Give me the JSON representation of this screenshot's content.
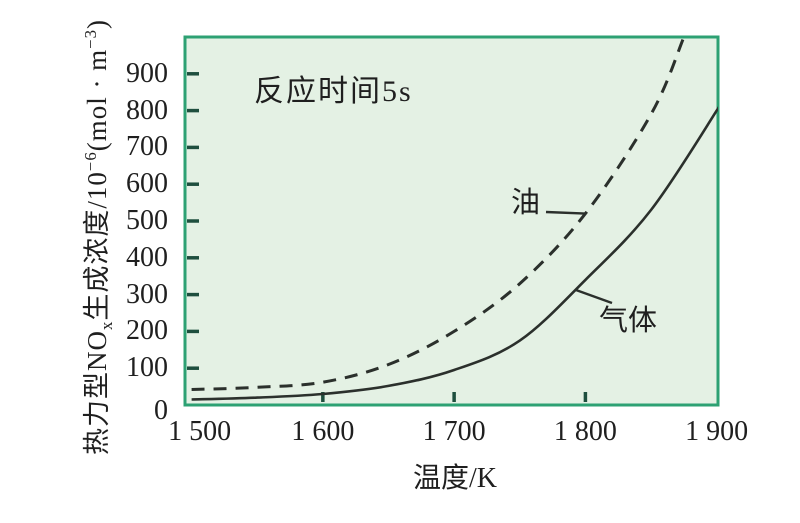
{
  "figure": {
    "annotation": "反应时间5s",
    "x_title": "温度/K",
    "y_title": {
      "p1": "热力型NO",
      "sub1": "x",
      "p2": "生成浓度/10",
      "sup1": "−6",
      "p3": "(mol · m",
      "sup2": "−3",
      "p4": ")"
    }
  },
  "colors": {
    "plot_fill": "#e4f1e4",
    "plot_border": "#2da173",
    "curve": "#2b302c",
    "tick": "#1e4f3e",
    "text": "#1f1f1f"
  },
  "chart_data": {
    "type": "line",
    "title": "",
    "xlabel": "温度/K",
    "ylabel": "热力型NOx生成浓度/10^-6 (mol·m^-3)",
    "annotation": "反应时间5s",
    "xlim": [
      1495,
      1901
    ],
    "ylim": [
      0,
      1000
    ],
    "grid": false,
    "legend_position": "inline-labels",
    "x_ticks": [
      {
        "value": 1500,
        "label": "1 500",
        "mark": false
      },
      {
        "value": 1600,
        "label": "1 600",
        "mark": true
      },
      {
        "value": 1700,
        "label": "1 700",
        "mark": true
      },
      {
        "value": 1800,
        "label": "1 800",
        "mark": true
      },
      {
        "value": 1900,
        "label": "1 900",
        "mark": false
      }
    ],
    "y_ticks": [
      {
        "value": 0,
        "label": "0",
        "mark": false
      },
      {
        "value": 100,
        "label": "100",
        "mark": true
      },
      {
        "value": 200,
        "label": "200",
        "mark": true
      },
      {
        "value": 300,
        "label": "300",
        "mark": true
      },
      {
        "value": 400,
        "label": "400",
        "mark": true
      },
      {
        "value": 500,
        "label": "500",
        "mark": true
      },
      {
        "value": 600,
        "label": "600",
        "mark": true
      },
      {
        "value": 700,
        "label": "700",
        "mark": true
      },
      {
        "value": 800,
        "label": "800",
        "mark": true
      },
      {
        "value": 900,
        "label": "900",
        "mark": true
      }
    ],
    "series": [
      {
        "name": "油",
        "style": "dashed",
        "label_anchor_x": 1800,
        "points": [
          [
            1500,
            42
          ],
          [
            1550,
            48
          ],
          [
            1600,
            62
          ],
          [
            1650,
            110
          ],
          [
            1700,
            200
          ],
          [
            1750,
            330
          ],
          [
            1800,
            520
          ],
          [
            1850,
            790
          ],
          [
            1875,
            1000
          ],
          [
            1890,
            1150
          ]
        ]
      },
      {
        "name": "气体",
        "style": "solid",
        "label_anchor_x": 1792,
        "points": [
          [
            1500,
            15
          ],
          [
            1550,
            20
          ],
          [
            1600,
            30
          ],
          [
            1650,
            52
          ],
          [
            1700,
            95
          ],
          [
            1750,
            175
          ],
          [
            1800,
            340
          ],
          [
            1850,
            530
          ],
          [
            1900,
            800
          ],
          [
            1910,
            865
          ]
        ]
      }
    ]
  }
}
